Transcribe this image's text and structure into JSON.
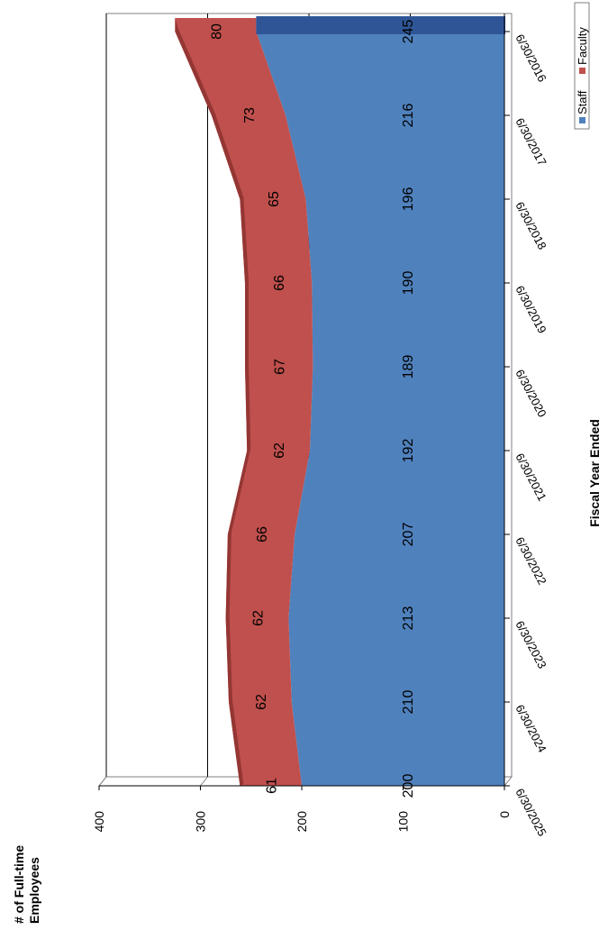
{
  "chart_data": {
    "type": "area",
    "stacked": true,
    "orientation": "rotated-90",
    "ylabel": "# of Full-time Employees",
    "xlabel": "Fiscal Year Ended",
    "ylim": [
      0,
      400
    ],
    "yticks": [
      "0",
      "100",
      "200",
      "300",
      "400"
    ],
    "categories": [
      "6/30/2016",
      "6/30/2017",
      "6/30/2018",
      "6/30/2019",
      "6/30/2020",
      "6/30/2021",
      "6/30/2022",
      "6/30/2023",
      "6/30/2024",
      "6/30/2025"
    ],
    "series": [
      {
        "name": "Staff",
        "color": "#4f81bd",
        "values": [
          245,
          216,
          196,
          190,
          189,
          192,
          207,
          213,
          210,
          200
        ]
      },
      {
        "name": "Faculty",
        "color": "#c0504d",
        "values": [
          80,
          73,
          65,
          66,
          67,
          62,
          66,
          62,
          62,
          61
        ]
      }
    ],
    "legend": {
      "position": "top-right",
      "items": [
        "Staff",
        "Faculty"
      ]
    },
    "grid": true
  }
}
